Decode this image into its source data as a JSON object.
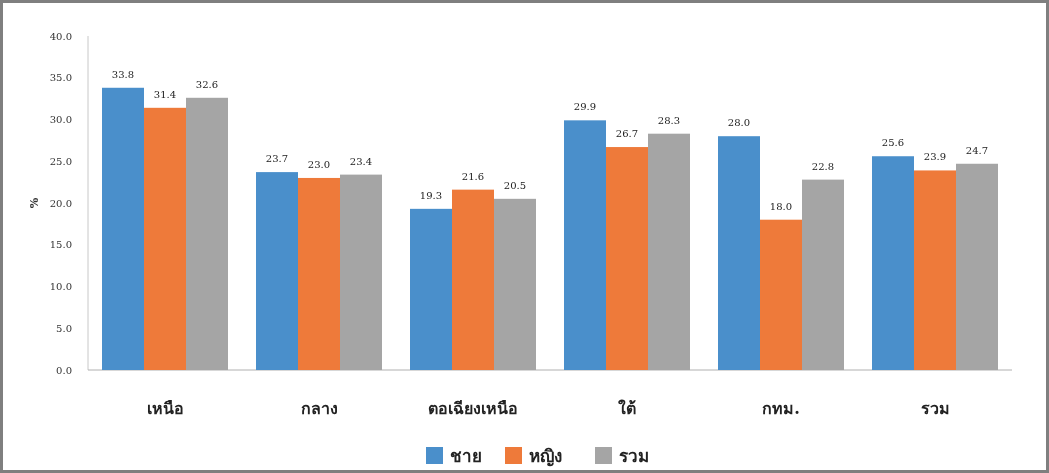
{
  "chart_data": {
    "type": "bar",
    "ylabel": "%",
    "categories": [
      "เหนือ",
      "กลาง",
      "ตอเฉียงเหนือ",
      "ใต้",
      "กทม.",
      "รวม"
    ],
    "series": [
      {
        "name": "ชาย",
        "color": "#4a8fcb",
        "values": [
          33.8,
          23.7,
          19.3,
          29.9,
          28.0,
          25.6
        ],
        "value_labels": [
          "33.8",
          "23.7",
          "19.3",
          "29.9",
          "28.0",
          "25.6"
        ]
      },
      {
        "name": "หญิง",
        "color": "#ee7a3a",
        "values": [
          31.4,
          23.0,
          21.6,
          26.7,
          18.0,
          23.9
        ],
        "value_labels": [
          "31.4",
          "23.0",
          "21.6",
          "26.7",
          "18.0",
          "23.9"
        ]
      },
      {
        "name": "รวม",
        "color": "#a5a5a5",
        "values": [
          32.6,
          23.4,
          20.5,
          28.3,
          22.8,
          24.7
        ],
        "value_labels": [
          "32.6",
          "23.4",
          "20.5",
          "28.3",
          "22.8",
          "24.7"
        ]
      }
    ],
    "ylim": [
      0,
      40
    ],
    "yticks": [
      {
        "value": 0,
        "label": "0.0"
      },
      {
        "value": 5,
        "label": "5.0"
      },
      {
        "value": 10,
        "label": "10.0"
      },
      {
        "value": 15,
        "label": "15.0"
      },
      {
        "value": 20,
        "label": "20.0"
      },
      {
        "value": 25,
        "label": "25.0"
      },
      {
        "value": 30,
        "label": "30.0"
      },
      {
        "value": 35,
        "label": "35.0"
      },
      {
        "value": 40,
        "label": "40.0"
      }
    ],
    "legend": "bottom"
  }
}
